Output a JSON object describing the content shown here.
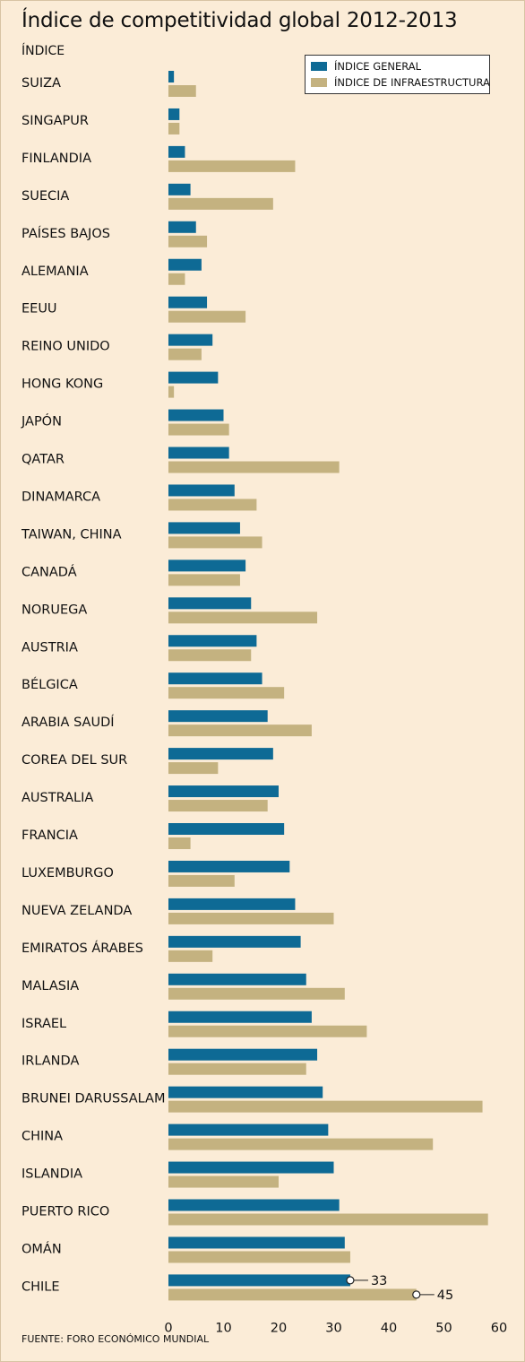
{
  "title": "Índice de competitividad global 2012-2013",
  "subtitle": "ÍNDICE",
  "source": "FUENTE: FORO ECONÓMICO MUNDIAL",
  "colors": {
    "general": "#0e6a95",
    "infraestructura": "#c4b280",
    "background": "#fbecd7"
  },
  "chart_data": {
    "type": "bar",
    "orientation": "horizontal",
    "categories": [
      "SUIZA",
      "SINGAPUR",
      "FINLANDIA",
      "SUECIA",
      "PAÍSES BAJOS",
      "ALEMANIA",
      "EEUU",
      "REINO UNIDO",
      "HONG KONG",
      "JAPÓN",
      "QATAR",
      "DINAMARCA",
      "TAIWAN, CHINA",
      "CANADÁ",
      "NORUEGA",
      "AUSTRIA",
      "BÉLGICA",
      "ARABIA SAUDÍ",
      "COREA DEL SUR",
      "AUSTRALIA",
      "FRANCIA",
      "LUXEMBURGO",
      "NUEVA ZELANDA",
      "EMIRATOS ÁRABES",
      "MALASIA",
      "ISRAEL",
      "IRLANDA",
      "BRUNEI DARUSSALAM",
      "CHINA",
      "ISLANDIA",
      "PUERTO RICO",
      "OMÁN",
      "CHILE"
    ],
    "series": [
      {
        "name": "ÍNDICE GENERAL",
        "values": [
          1,
          2,
          3,
          4,
          5,
          6,
          7,
          8,
          9,
          10,
          11,
          12,
          13,
          14,
          15,
          16,
          17,
          18,
          19,
          20,
          21,
          22,
          23,
          24,
          25,
          26,
          27,
          28,
          29,
          30,
          31,
          32,
          33
        ]
      },
      {
        "name": "ÍNDICE DE INFRAESTRUCTURA",
        "values": [
          5,
          2,
          23,
          19,
          7,
          3,
          14,
          6,
          1,
          11,
          31,
          16,
          17,
          13,
          27,
          15,
          21,
          26,
          9,
          18,
          4,
          12,
          30,
          8,
          32,
          36,
          25,
          57,
          48,
          20,
          58,
          33,
          45
        ]
      }
    ],
    "xlim": [
      0,
      60
    ],
    "xticks": [
      "0",
      "10",
      "20",
      "30",
      "40",
      "50",
      "60"
    ],
    "annotations": [
      {
        "category": "CHILE",
        "series": "ÍNDICE GENERAL",
        "label": "33"
      },
      {
        "category": "CHILE",
        "series": "ÍNDICE DE INFRAESTRUCTURA",
        "label": "45"
      }
    ],
    "legend": "top-right",
    "grid": false
  }
}
